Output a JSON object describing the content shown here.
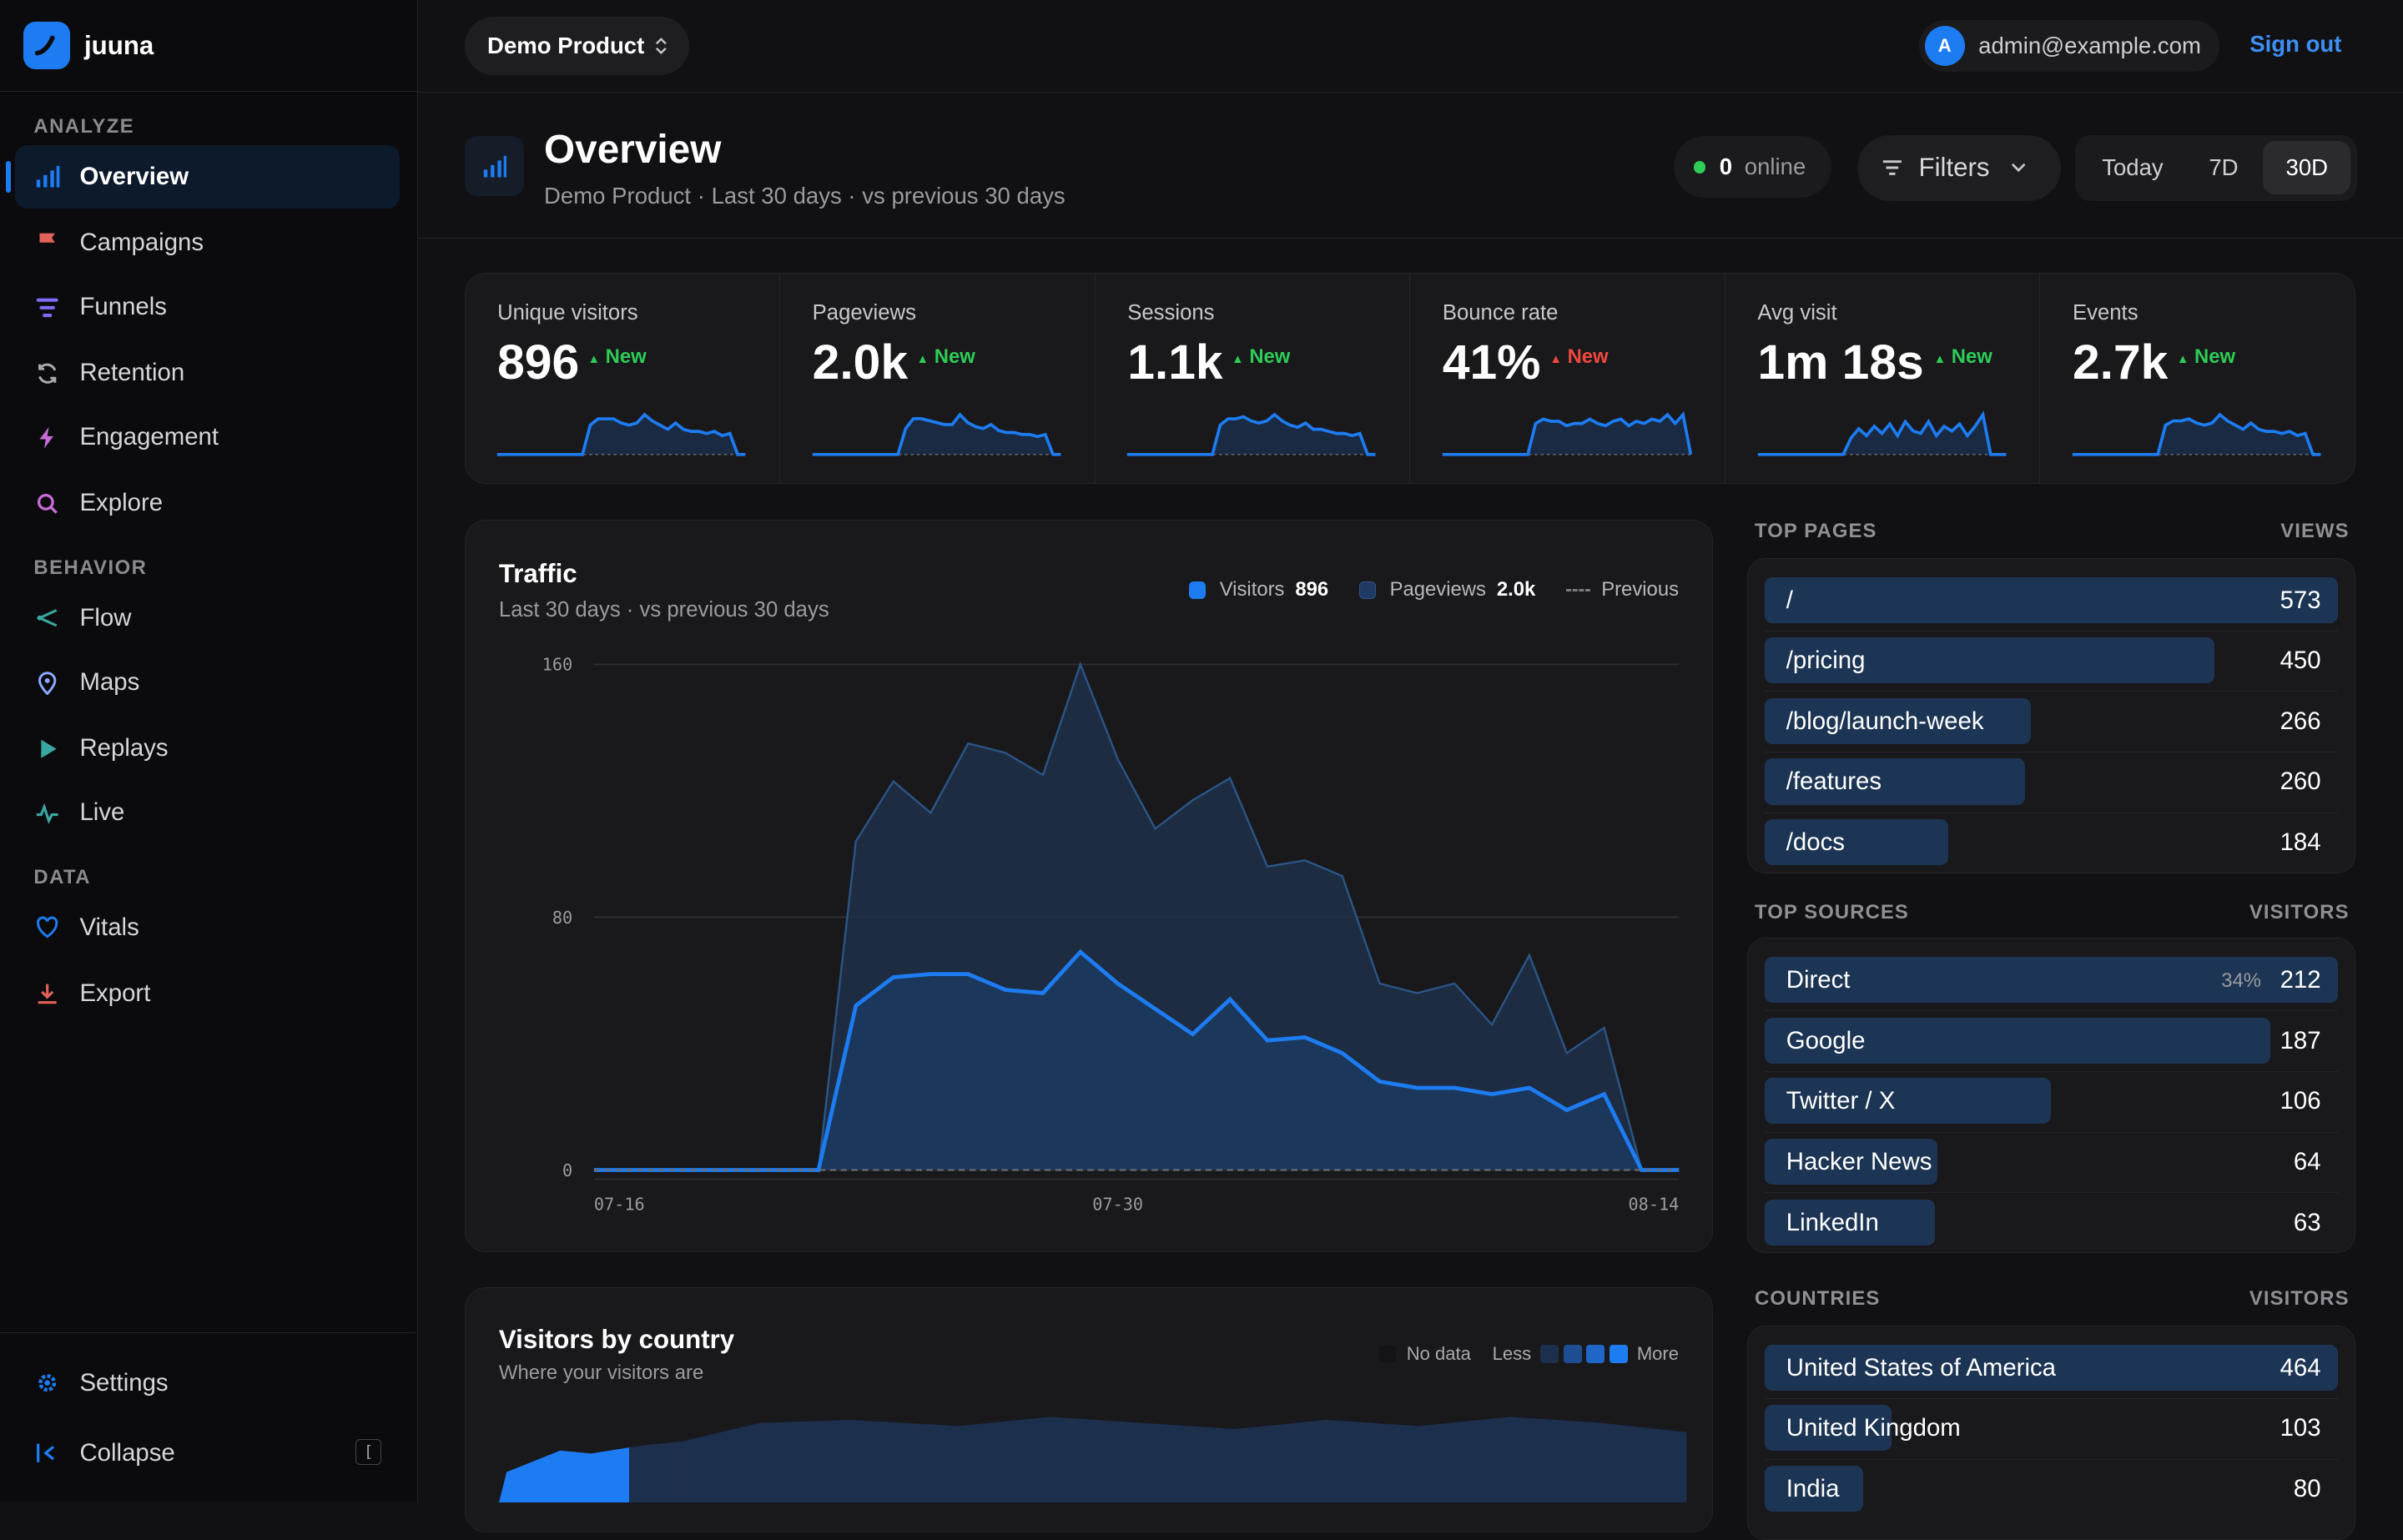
{
  "app": {
    "name": "juuna"
  },
  "sidebar": {
    "sections": [
      {
        "title": "ANALYZE",
        "items": [
          {
            "label": "Overview",
            "icon": "bar-chart-icon",
            "active": true
          },
          {
            "label": "Campaigns",
            "icon": "flag-icon"
          },
          {
            "label": "Funnels",
            "icon": "funnel-icon"
          },
          {
            "label": "Retention",
            "icon": "retention-icon"
          },
          {
            "label": "Engagement",
            "icon": "bolt-icon"
          },
          {
            "label": "Explore",
            "icon": "search-icon"
          }
        ]
      },
      {
        "title": "BEHAVIOR",
        "items": [
          {
            "label": "Flow",
            "icon": "flow-icon"
          },
          {
            "label": "Maps",
            "icon": "map-pin-icon"
          },
          {
            "label": "Replays",
            "icon": "play-icon"
          },
          {
            "label": "Live",
            "icon": "pulse-icon"
          }
        ]
      },
      {
        "title": "DATA",
        "items": [
          {
            "label": "Vitals",
            "icon": "heart-icon"
          },
          {
            "label": "Export",
            "icon": "download-icon"
          }
        ]
      }
    ],
    "footer": {
      "settings": "Settings",
      "collapse": "Collapse",
      "collapse_key": "["
    }
  },
  "topbar": {
    "product": "Demo Product",
    "account_initial": "A",
    "account_email": "admin@example.com",
    "sign_out": "Sign out"
  },
  "header": {
    "title": "Overview",
    "subtitle": "Demo Product · Last 30 days · vs previous 30 days",
    "online_count": "0",
    "online_label": "online",
    "filters_label": "Filters",
    "ranges": [
      "Today",
      "7D",
      "30D"
    ],
    "active_range": "30D"
  },
  "kpis": [
    {
      "label": "Unique visitors",
      "value": "896",
      "badge": "New",
      "trend": "up",
      "spark": [
        0,
        0,
        0,
        0,
        0,
        0,
        0,
        0,
        0,
        0,
        0,
        0,
        14,
        17,
        17,
        17,
        15,
        14,
        15,
        19,
        16,
        14,
        12,
        15,
        12,
        11,
        11,
        10,
        11,
        9,
        10,
        0,
        0
      ]
    },
    {
      "label": "Pageviews",
      "value": "2.0k",
      "badge": "New",
      "trend": "up",
      "spark": [
        0,
        0,
        0,
        0,
        0,
        0,
        0,
        0,
        0,
        0,
        0,
        0,
        13,
        18,
        18,
        17,
        16,
        15,
        15,
        20,
        16,
        14,
        13,
        15,
        12,
        11,
        11,
        10,
        10,
        9,
        10,
        0,
        0
      ]
    },
    {
      "label": "Sessions",
      "value": "1.1k",
      "badge": "New",
      "trend": "up",
      "spark": [
        0,
        0,
        0,
        0,
        0,
        0,
        0,
        0,
        0,
        0,
        0,
        0,
        14,
        17,
        17,
        18,
        16,
        15,
        16,
        19,
        16,
        14,
        13,
        15,
        12,
        12,
        11,
        10,
        10,
        9,
        10,
        0,
        0
      ]
    },
    {
      "label": "Bounce rate",
      "value": "41%",
      "badge": "New",
      "trend": "down",
      "spark": [
        0,
        0,
        0,
        0,
        0,
        0,
        0,
        0,
        0,
        0,
        0,
        0,
        14,
        16,
        15,
        15,
        13,
        14,
        14,
        16,
        14,
        13,
        15,
        16,
        13,
        15,
        14,
        16,
        15,
        18,
        14,
        18,
        0
      ]
    },
    {
      "label": "Avg visit",
      "value": "1m 18s",
      "badge": "New",
      "trend": "up",
      "spark": [
        0,
        0,
        0,
        0,
        0,
        0,
        0,
        0,
        0,
        0,
        0,
        0,
        7,
        11,
        8,
        12,
        9,
        13,
        8,
        14,
        10,
        9,
        14,
        8,
        12,
        10,
        13,
        8,
        12,
        17,
        0,
        0,
        0
      ]
    },
    {
      "label": "Events",
      "value": "2.7k",
      "badge": "New",
      "trend": "up",
      "spark": [
        0,
        0,
        0,
        0,
        0,
        0,
        0,
        0,
        0,
        0,
        0,
        0,
        14,
        16,
        16,
        17,
        15,
        14,
        15,
        19,
        16,
        14,
        12,
        15,
        12,
        11,
        11,
        10,
        11,
        9,
        10,
        0,
        0
      ]
    }
  ],
  "traffic": {
    "title": "Traffic",
    "subtitle": "Last 30 days · vs previous 30 days",
    "legend": {
      "visitors_label": "Visitors",
      "visitors_total": "896",
      "pageviews_label": "Pageviews",
      "pageviews_total": "2.0k",
      "previous_label": "Previous"
    },
    "colors": {
      "visitors": "#1d7cf2",
      "pageviews": "#1f3b63"
    }
  },
  "chart_data": {
    "type": "area",
    "x": [
      "07-16",
      "07-17",
      "07-18",
      "07-19",
      "07-20",
      "07-21",
      "07-22",
      "07-23",
      "07-24",
      "07-25",
      "07-26",
      "07-27",
      "07-28",
      "07-29",
      "07-30",
      "07-31",
      "08-01",
      "08-02",
      "08-03",
      "08-04",
      "08-05",
      "08-06",
      "08-07",
      "08-08",
      "08-09",
      "08-10",
      "08-11",
      "08-12",
      "08-13",
      "08-14"
    ],
    "x_tick_labels": [
      "07-16",
      "07-30",
      "08-14"
    ],
    "y_ticks": [
      0,
      80,
      160
    ],
    "ylim": [
      0,
      160
    ],
    "series": [
      {
        "name": "Pageviews",
        "values": [
          0,
          0,
          0,
          0,
          0,
          0,
          0,
          104,
          123,
          113,
          135,
          132,
          125,
          160,
          130,
          108,
          117,
          124,
          96,
          98,
          93,
          59,
          56,
          59,
          46,
          68,
          37,
          45,
          0,
          0
        ]
      },
      {
        "name": "Visitors",
        "values": [
          0,
          0,
          0,
          0,
          0,
          0,
          0,
          52,
          61,
          62,
          62,
          57,
          56,
          69,
          59,
          51,
          43,
          54,
          41,
          42,
          37,
          28,
          26,
          26,
          24,
          26,
          19,
          24,
          0,
          0
        ]
      },
      {
        "name": "Previous",
        "values": [
          0,
          0,
          0,
          0,
          0,
          0,
          0,
          0,
          0,
          0,
          0,
          0,
          0,
          0,
          0,
          0,
          0,
          0,
          0,
          0,
          0,
          0,
          0,
          0,
          0,
          0,
          0,
          0,
          0,
          0
        ]
      }
    ],
    "legend": "top-right",
    "grid": true
  },
  "countries_map": {
    "title": "Visitors by country",
    "subtitle": "Where your visitors are",
    "legend": {
      "no_data": "No data",
      "less": "Less",
      "more": "More"
    }
  },
  "top_pages": {
    "title": "TOP PAGES",
    "metric": "VIEWS",
    "rows": [
      {
        "label": "/",
        "value": "573",
        "share": 1.0
      },
      {
        "label": "/pricing",
        "value": "450",
        "share": 0.785
      },
      {
        "label": "/blog/launch-week",
        "value": "266",
        "share": 0.464
      },
      {
        "label": "/features",
        "value": "260",
        "share": 0.454
      },
      {
        "label": "/docs",
        "value": "184",
        "share": 0.321
      }
    ]
  },
  "top_sources": {
    "title": "TOP SOURCES",
    "metric": "VISITORS",
    "rows": [
      {
        "label": "Direct",
        "value": "212",
        "share": 1.0,
        "pct": "34%"
      },
      {
        "label": "Google",
        "value": "187",
        "share": 0.882
      },
      {
        "label": "Twitter / X",
        "value": "106",
        "share": 0.5
      },
      {
        "label": "Hacker News",
        "value": "64",
        "share": 0.302
      },
      {
        "label": "LinkedIn",
        "value": "63",
        "share": 0.297
      }
    ]
  },
  "countries": {
    "title": "COUNTRIES",
    "metric": "VISITORS",
    "rows": [
      {
        "label": "United States of America",
        "value": "464",
        "share": 1.0
      },
      {
        "label": "United Kingdom",
        "value": "103",
        "share": 0.222
      },
      {
        "label": "India",
        "value": "80",
        "share": 0.172
      }
    ]
  }
}
